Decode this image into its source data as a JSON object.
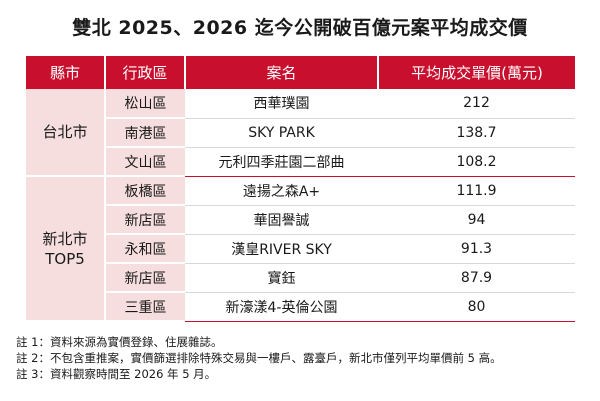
{
  "title": "雙北 2025、2026 迄今公開破百億元案平均成交價",
  "headers": [
    "縣市",
    "行政區",
    "案名",
    "平均成交單價(萬元)"
  ],
  "groups": [
    {
      "county_lines": [
        "台北市"
      ],
      "rows": [
        {
          "district": "松山區",
          "name": "西華璞園",
          "price": "212"
        },
        {
          "district": "南港區",
          "name": "SKY PARK",
          "price": "138.7"
        },
        {
          "district": "文山區",
          "name": "元利四季莊園二部曲",
          "price": "108.2"
        }
      ]
    },
    {
      "county_lines": [
        "新北市",
        "TOP5"
      ],
      "rows": [
        {
          "district": "板橋區",
          "name": "遠揚之森A+",
          "price": "111.9"
        },
        {
          "district": "新店區",
          "name": "華固譽誠",
          "price": "94"
        },
        {
          "district": "永和區",
          "name": "漢皇RIVER SKY",
          "price": "91.3"
        },
        {
          "district": "新店區",
          "name": "寶鈺",
          "price": "87.9"
        },
        {
          "district": "三重區",
          "name": "新濠漾4-英倫公園",
          "price": "80"
        }
      ]
    }
  ],
  "notes": [
    "註 1：資料來源為實價登錄、住展雜誌。",
    "註 2：不包含重推案，實價篩選排除特殊交易與一樓戶、露臺戶，新北市僅列平均單價前 5 高。",
    "註 3：資料觀察時間至 2026 年 5 月。"
  ]
}
